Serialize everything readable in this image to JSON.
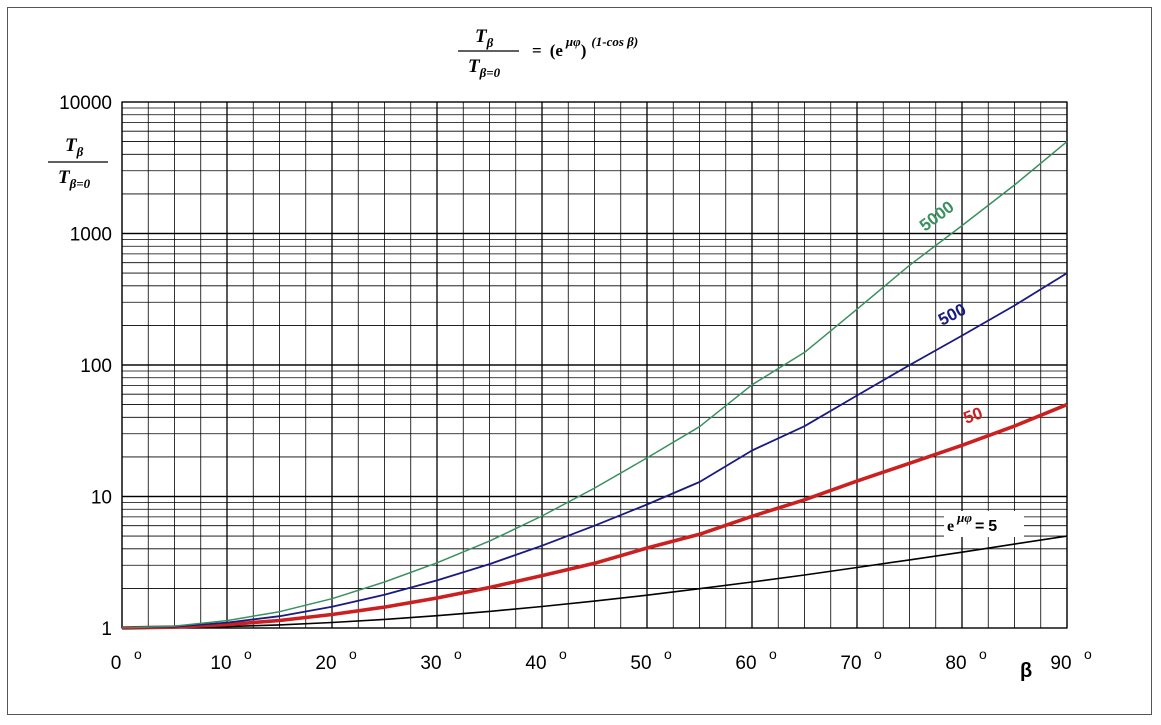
{
  "chart_data": {
    "type": "line",
    "title": {
      "numerator": "T",
      "numerator_sub": "β",
      "denominator": "T",
      "denominator_sub": "β=0",
      "equals": "=",
      "open": "(e",
      "exponent": "μφ",
      "close": ")",
      "power": "(1-cos β)"
    },
    "ylabel": {
      "numerator": "T",
      "numerator_sub": "β",
      "denominator": "T",
      "denominator_sub": "β=0"
    },
    "xlabel": "β",
    "y_scale": "log",
    "ylim": [
      1,
      10000
    ],
    "xlim": [
      0,
      90
    ],
    "grid": true,
    "x_ticks": [
      {
        "value": 0,
        "label": "0",
        "degree": "o"
      },
      {
        "value": 10,
        "label": "10",
        "degree": "o"
      },
      {
        "value": 20,
        "label": "20",
        "degree": "o"
      },
      {
        "value": 30,
        "label": "30",
        "degree": "o"
      },
      {
        "value": 40,
        "label": "40",
        "degree": "o"
      },
      {
        "value": 50,
        "label": "50",
        "degree": "o"
      },
      {
        "value": 60,
        "label": "60",
        "degree": "o"
      },
      {
        "value": 70,
        "label": "70",
        "degree": "o"
      },
      {
        "value": 80,
        "label": "80",
        "degree": "o"
      },
      {
        "value": 90,
        "label": "90",
        "degree": "o"
      }
    ],
    "y_ticks": [
      {
        "value": 1,
        "label": "1"
      },
      {
        "value": 10,
        "label": "10"
      },
      {
        "value": 100,
        "label": "100"
      },
      {
        "value": 1000,
        "label": "1000"
      },
      {
        "value": 10000,
        "label": "10000"
      }
    ],
    "x": [
      0,
      5,
      10,
      15,
      20,
      25,
      30,
      35,
      40,
      45,
      50,
      55,
      60,
      65,
      70,
      75,
      80,
      85,
      90
    ],
    "series": [
      {
        "label": "5",
        "label_prefix": "e",
        "label_exponent": "μφ",
        "label_equals": "=",
        "color": "#000000",
        "values": [
          1.0,
          1.006,
          1.025,
          1.056,
          1.102,
          1.163,
          1.24,
          1.337,
          1.457,
          1.602,
          1.777,
          1.989,
          2.236,
          2.528,
          2.883,
          3.296,
          3.774,
          4.344,
          5.0
        ]
      },
      {
        "label": "50",
        "color": "#cc2020",
        "values": [
          1.0,
          1.015,
          1.061,
          1.141,
          1.266,
          1.442,
          1.69,
          2.031,
          2.501,
          3.103,
          4.058,
          5.158,
          7.075,
          9.441,
          13.09,
          17.89,
          24.49,
          34.31,
          50.0
        ]
      },
      {
        "label": "500",
        "color": "#1a1a80",
        "values": [
          1.0,
          1.024,
          1.099,
          1.23,
          1.453,
          1.792,
          2.3,
          3.06,
          4.226,
          6.001,
          8.697,
          12.9,
          22.36,
          34.26,
          58.6,
          99.85,
          167.3,
          283.3,
          500.0
        ]
      },
      {
        "label": "5000",
        "color": "#3a9060",
        "values": [
          1.0,
          1.033,
          1.139,
          1.331,
          1.669,
          2.236,
          3.133,
          4.581,
          7.106,
          11.58,
          19.66,
          33.92,
          70.71,
          124.7,
          265.5,
          572.6,
          1147.6,
          2339.5,
          5000.0
        ]
      }
    ]
  }
}
